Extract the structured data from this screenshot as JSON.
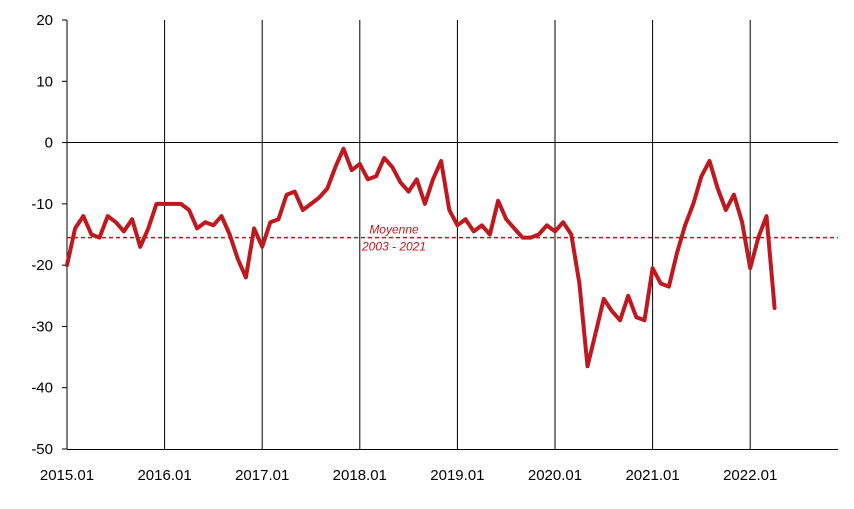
{
  "chart_data": {
    "type": "line",
    "title": "",
    "xlabel": "",
    "ylabel": "",
    "ylim": [
      -50,
      20
    ],
    "yticks": [
      20,
      10,
      0,
      -10,
      -20,
      -30,
      -40,
      -50
    ],
    "xtick_labels": [
      "2015.01",
      "2016.01",
      "2017.01",
      "2018.01",
      "2019.01",
      "2020.01",
      "2021.01",
      "2022.01"
    ],
    "grid": "vertical lines at each January",
    "series": [
      {
        "name": "",
        "color": "#c0181f",
        "x_start": "2015.01",
        "frequency": "monthly",
        "values": [
          -20,
          -14,
          -12,
          -15,
          -15.5,
          -12,
          -13,
          -14.5,
          -12.5,
          -17,
          -14,
          -10,
          -10,
          -10,
          -10,
          -11,
          -14,
          -13,
          -13.5,
          -12,
          -15,
          -19,
          -22,
          -14,
          -17,
          -13,
          -12.5,
          -8.5,
          -8,
          -11,
          -10,
          -9,
          -7.5,
          -4,
          -1,
          -4.5,
          -3.5,
          -6,
          -5.5,
          -2.5,
          -4,
          -6.5,
          -8,
          -6,
          -10,
          -6,
          -3,
          -11,
          -13.5,
          -12.5,
          -14.5,
          -13.5,
          -15,
          -9.5,
          -12.5,
          -14,
          -15.5,
          -15.5,
          -15,
          -13.5,
          -14.5,
          -13,
          -15,
          -23,
          -36.5,
          -31,
          -25.5,
          -27.5,
          -29,
          -25,
          -28.5,
          -29,
          -20.5,
          -23,
          -23.5,
          -18,
          -13.5,
          -10,
          -5.5,
          -3,
          -7.5,
          -11,
          -8.5,
          -13,
          -20.5,
          -15.5,
          -12,
          -27
        ]
      },
      {
        "name": "Moyenne 2003 - 2021",
        "type": "hline",
        "color": "#c0181f",
        "value": -15.5
      }
    ],
    "annotations": [
      {
        "line1": "Moyenne",
        "line2": "2003 - 2021"
      }
    ]
  }
}
